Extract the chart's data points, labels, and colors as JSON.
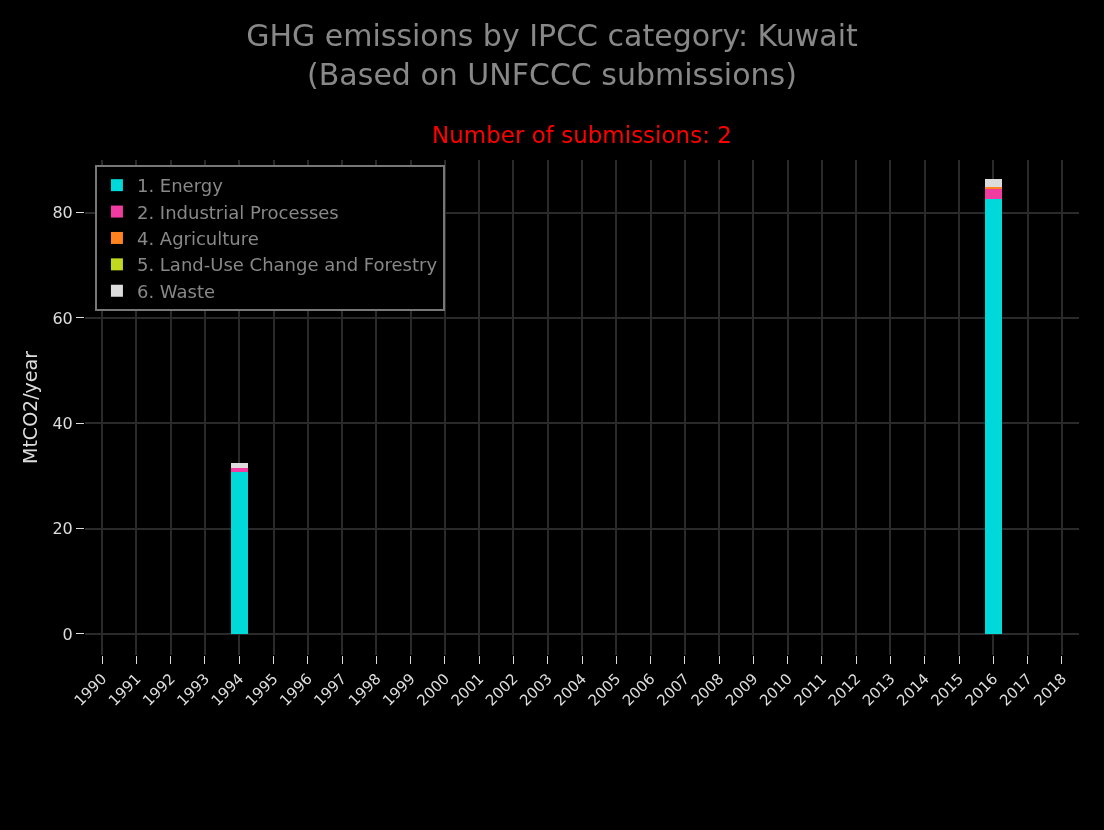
{
  "chart_data": {
    "type": "bar",
    "stacked": true,
    "title": "GHG emissions by IPCC category: Kuwait\n(Based on UNFCCC submissions)",
    "subtitle": "Number of submissions: 2",
    "ylabel": "MtCO2/year",
    "categories": [
      "1990",
      "1991",
      "1992",
      "1993",
      "1994",
      "1995",
      "1996",
      "1997",
      "1998",
      "1999",
      "2000",
      "2001",
      "2002",
      "2003",
      "2004",
      "2005",
      "2006",
      "2007",
      "2008",
      "2009",
      "2010",
      "2011",
      "2012",
      "2013",
      "2014",
      "2015",
      "2016",
      "2017",
      "2018"
    ],
    "series": [
      {
        "name": "1. Energy",
        "color": "#00d9d9",
        "values": [
          null,
          null,
          null,
          null,
          30.8,
          null,
          null,
          null,
          null,
          null,
          null,
          null,
          null,
          null,
          null,
          null,
          null,
          null,
          null,
          null,
          null,
          null,
          null,
          null,
          null,
          null,
          82.6,
          null,
          null
        ]
      },
      {
        "name": "2. Industrial Processes",
        "color": "#f03ca0",
        "values": [
          null,
          null,
          null,
          null,
          0.8,
          null,
          null,
          null,
          null,
          null,
          null,
          null,
          null,
          null,
          null,
          null,
          null,
          null,
          null,
          null,
          null,
          null,
          null,
          null,
          null,
          null,
          2.0,
          null,
          null
        ]
      },
      {
        "name": "4. Agriculture",
        "color": "#ff8420",
        "values": [
          null,
          null,
          null,
          null,
          0,
          null,
          null,
          null,
          null,
          null,
          null,
          null,
          null,
          null,
          null,
          null,
          null,
          null,
          null,
          null,
          null,
          null,
          null,
          null,
          null,
          null,
          0.2,
          null,
          null
        ]
      },
      {
        "name": "5. Land-Use Change and Forestry",
        "color": "#c0d820",
        "values": [
          null,
          null,
          null,
          null,
          null,
          null,
          null,
          null,
          null,
          null,
          null,
          null,
          null,
          null,
          null,
          null,
          null,
          null,
          null,
          null,
          null,
          null,
          null,
          null,
          null,
          null,
          null,
          null,
          null
        ]
      },
      {
        "name": "6. Waste",
        "color": "#dcdcdc",
        "values": [
          null,
          null,
          null,
          null,
          0.8,
          null,
          null,
          null,
          null,
          null,
          null,
          null,
          null,
          null,
          null,
          null,
          null,
          null,
          null,
          null,
          null,
          null,
          null,
          null,
          null,
          null,
          1.6,
          null,
          null
        ]
      }
    ],
    "ylim": [
      -4,
      90
    ],
    "yticks": [
      0,
      20,
      40,
      60,
      80
    ],
    "grid": true,
    "legend": "top left"
  }
}
